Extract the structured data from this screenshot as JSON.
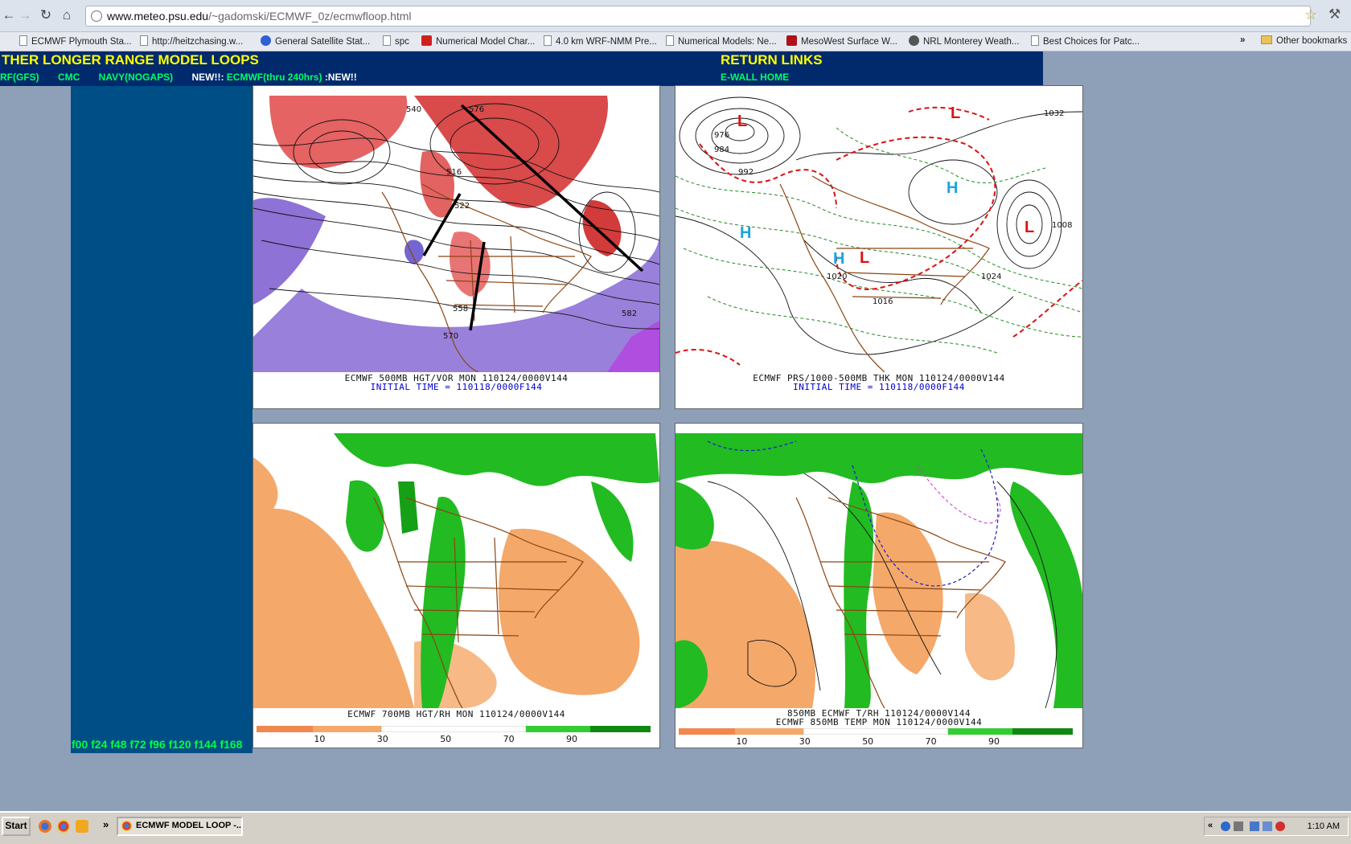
{
  "browser": {
    "url_domain": "www.meteo.psu.edu",
    "url_path": "/~gadomski/ECMWF_0z/ecmwfloop.html",
    "bookmarks": [
      "ECMWF Plymouth Sta...",
      "http://heitzchasing.w...",
      "General Satellite Stat...",
      "spc",
      "Numerical Model Char...",
      "4.0 km WRF-NMM Pre...",
      "Numerical Models: Ne...",
      "MesoWest Surface W...",
      "NRL Monterey Weath...",
      "Best Choices for Patc..."
    ],
    "bookmarks_overflow": "»",
    "other_bookmarks": "Other bookmarks"
  },
  "header": {
    "other_title": "THER LONGER RANGE MODEL LOOPS",
    "return_title": "RETURN LINKS",
    "model_links": [
      "RF(GFS)",
      "CMC",
      "NAVY(NOGAPS)"
    ],
    "new_prefix": "NEW!!:",
    "new_link": "ECMWF(thru 240hrs)",
    "new_suffix": ":NEW!!",
    "ewall_link": "E-WALL HOME"
  },
  "frame_links": "f00 f24 f48 f72 f96 f120 f144 f168",
  "panels": {
    "p500": {
      "caption": "ECMWF 500MB HGT/VOR MON 110124/0000V144",
      "subcaption": "INITIAL TIME = 110118/0000F144",
      "labels": [
        "516",
        "522",
        "540",
        "558",
        "570",
        "582",
        "576"
      ]
    },
    "pslp": {
      "caption": "ECMWF PRS/1000-500MB THK MON 110124/0000V144",
      "subcaption": "INITIAL TIME = 110118/0000F144",
      "highs": [
        "H",
        "H",
        "H"
      ],
      "lows": [
        "L",
        "L",
        "L",
        "L"
      ],
      "labels": [
        "1032",
        "976",
        "984",
        "992",
        "1008",
        "1016",
        "1024",
        "1020"
      ]
    },
    "p700": {
      "caption": "ECMWF 700MB HGT/RH MON 110124/0000V144",
      "colorbar": [
        "10",
        "30",
        "50",
        "70",
        "90"
      ]
    },
    "p850": {
      "caption": "850MB ECMWF T/RH 110124/0000V144",
      "caption2": "ECMWF 850MB TEMP MON 110124/0000V144",
      "colorbar": [
        "10",
        "30",
        "50",
        "70",
        "90"
      ]
    }
  },
  "colors": {
    "header_bg": "#002a6c",
    "link_green": "#00ff66",
    "title_yellow": "#ffff00",
    "moist_green": "#22bb22",
    "dry_orange": "#f4a869",
    "vort_red": "#e04848",
    "vort_purple": "#8e72d6"
  },
  "taskbar": {
    "start": "Start",
    "overflow": "»",
    "task_title": "ECMWF MODEL LOOP -...",
    "tray_overflow": "«",
    "clock": "1:10 AM"
  }
}
